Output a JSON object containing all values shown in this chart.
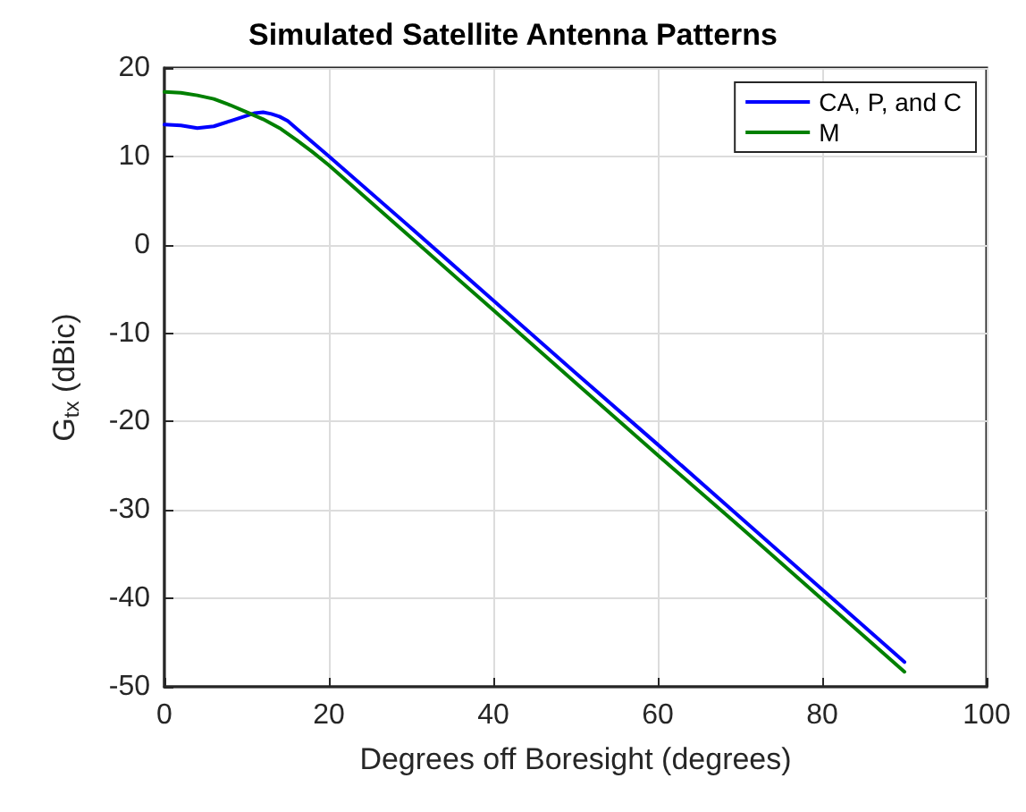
{
  "chart_data": {
    "type": "line",
    "title": "Simulated Satellite Antenna Patterns",
    "xlabel": "Degrees off Boresight (degrees)",
    "ylabel": "G$_{tx}$ (dBic)",
    "xlim": [
      0,
      100
    ],
    "xticks": [
      0,
      20,
      40,
      60,
      80,
      100
    ],
    "ylim": [
      -50,
      20
    ],
    "yticks": [
      -50,
      -40,
      -30,
      -20,
      -10,
      0,
      10,
      20
    ],
    "grid": true,
    "legend": "top right",
    "line_style": "solid",
    "marker": "none",
    "series": [
      {
        "name": "CA, P, and C",
        "color": "#0000ff",
        "x": [
          0,
          2,
          4,
          6,
          8,
          10,
          11,
          12,
          13,
          14,
          15,
          16,
          18,
          20,
          30,
          40,
          50,
          60,
          70,
          80,
          90
        ],
        "values": [
          13.6,
          13.5,
          13.2,
          13.4,
          14,
          14.6,
          14.9,
          15,
          14.8,
          14.5,
          14,
          13.2,
          11.6,
          10,
          1.9,
          -6.3,
          -14.5,
          -22.6,
          -30.8,
          -39,
          -47.2
        ]
      },
      {
        "name": "M",
        "color": "#008000",
        "x": [
          0,
          2,
          4,
          6,
          8,
          10,
          12,
          14,
          16,
          18,
          20,
          30,
          40,
          50,
          60,
          70,
          80,
          90
        ],
        "values": [
          17.3,
          17.2,
          16.9,
          16.5,
          15.8,
          15,
          14.2,
          13.2,
          11.9,
          10.5,
          9,
          0.8,
          -7.4,
          -15.6,
          -23.8,
          -31.9,
          -40.1,
          -48.3
        ]
      }
    ]
  }
}
